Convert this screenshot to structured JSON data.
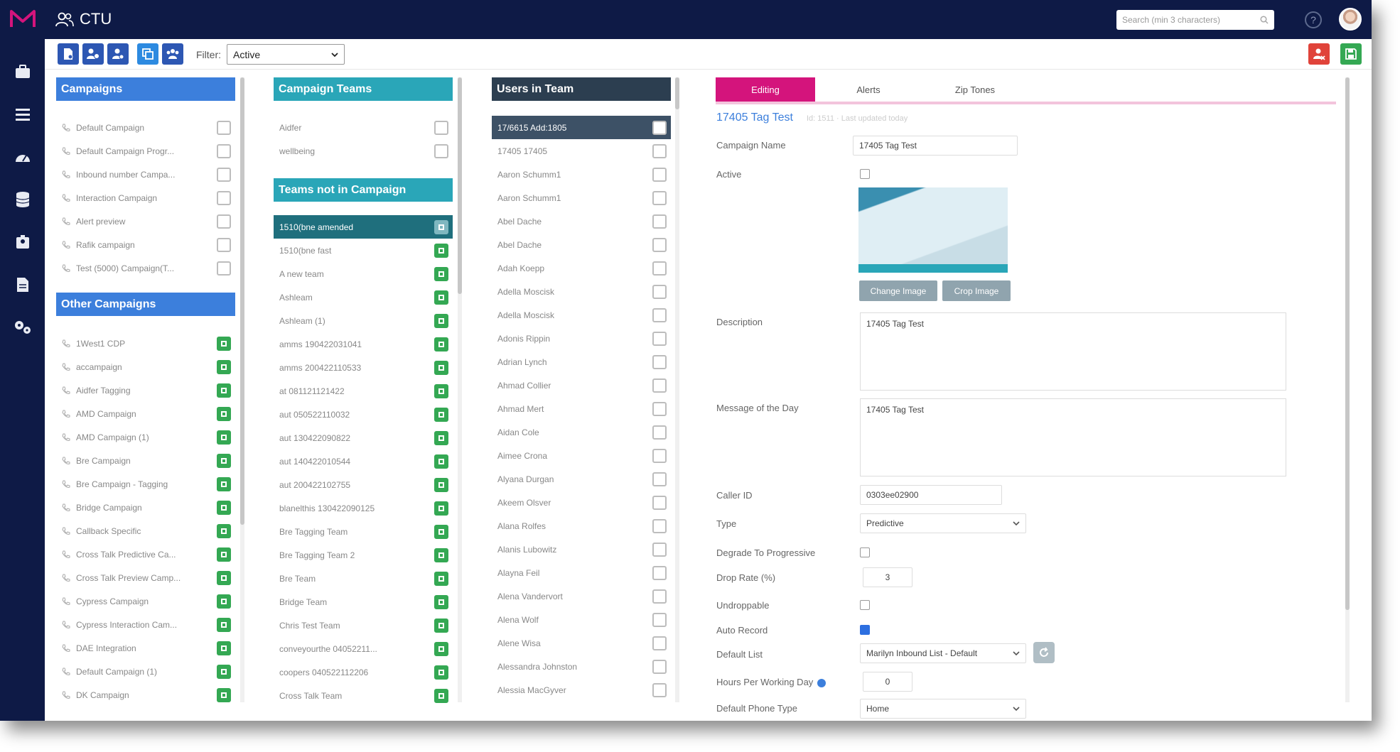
{
  "app": {
    "title": "CTU",
    "search_placeholder": "Search (min 3 characters)"
  },
  "toolbar": {
    "filter_label": "Filter:",
    "filter_value": "Active"
  },
  "campaigns": {
    "header": "Campaigns",
    "items": [
      "Default Campaign",
      "Default Campaign Progr...",
      "Inbound number Campa...",
      "Interaction Campaign",
      "Alert preview",
      "Rafik campaign",
      "Test (5000) Campaign(T..."
    ]
  },
  "other_campaigns": {
    "header": "Other Campaigns",
    "items": [
      "1West1 CDP",
      "accampaign",
      "Aidfer Tagging",
      "AMD Campaign",
      "AMD Campaign (1)",
      "Bre Campaign",
      "Bre Campaign - Tagging",
      "Bridge Campaign",
      "Callback Specific",
      "Cross Talk Predictive Ca...",
      "Cross Talk Preview Camp...",
      "Cypress Campaign",
      "Cypress Interaction Cam...",
      "DAE Integration",
      "Default Campaign (1)",
      "DK Campaign"
    ]
  },
  "campaign_teams": {
    "header": "Campaign Teams",
    "items": [
      "Aidfer",
      "wellbeing"
    ]
  },
  "teams_not_in_campaign": {
    "header": "Teams not in Campaign",
    "selected": "1510(bne amended",
    "items": [
      "1510(bne fast",
      "A new team",
      "Ashleam",
      "Ashleam (1)",
      "amms 190422031041",
      "amms 200422110533",
      "at 081121121422",
      "aut 050522110032",
      "aut 130422090822",
      "aut 140422010544",
      "aut 200422102755",
      "blanelthis 130422090125",
      "Bre Tagging Team",
      "Bre Tagging Team 2",
      "Bre Team",
      "Bridge Team",
      "Chris Test Team",
      "conveyourthe 04052211...",
      "coopers 040522112206",
      "Cross Talk Team"
    ]
  },
  "users_in_team": {
    "header": "Users in Team",
    "selected": "17/6615 Add:1805",
    "items": [
      "17405 17405",
      "Aaron Schumm1",
      "Aaron Schumm1",
      "Abel Dache",
      "Abel Dache",
      "Adah Koepp",
      "Adella Moscisk",
      "Adella Moscisk",
      "Adonis Rippin",
      "Adrian Lynch",
      "Ahmad Collier",
      "Ahmad Mert",
      "Aidan Cole",
      "Aimee Crona",
      "Alyana Durgan",
      "Akeem Olsver",
      "Alana Rolfes",
      "Alanis Lubowitz",
      "Alayna Feil",
      "Alena Vandervort",
      "Alena Wolf",
      "Alene Wisa",
      "Alessandra Johnston",
      "Alessia MacGyver"
    ]
  },
  "tabs": [
    "Editing",
    "Alerts",
    "Zip Tones"
  ],
  "form": {
    "title": "17405 Tag Test",
    "subtitle": "Id: 1511 · Last updated today",
    "campaign_name_label": "Campaign Name",
    "campaign_name_value": "17405 Tag Test",
    "active_label": "Active",
    "change_image_label": "Change Image",
    "crop_image_label": "Crop Image",
    "description_label": "Description",
    "description_value": "17405 Tag Test",
    "motd_label": "Message of the Day",
    "motd_value": "17405 Tag Test",
    "caller_id_label": "Caller ID",
    "caller_id_value": "0303ee02900",
    "type_label": "Type",
    "type_value": "Predictive",
    "degrade_label": "Degrade To Progressive",
    "drop_rate_label": "Drop Rate (%)",
    "drop_rate_value": "3",
    "undroppable_label": "Undroppable",
    "auto_record_label": "Auto Record",
    "default_list_label": "Default List",
    "default_list_value": "Marilyn Inbound List - Default",
    "hours_label": "Hours Per Working Day",
    "hours_value": "0",
    "phone_type_label": "Default Phone Type",
    "phone_type_value": "Home"
  },
  "colors": {
    "nav": "#0e1a46",
    "campaign_header": "#3c7fdc",
    "team_header": "#2aa6b8",
    "user_header": "#2c3e50",
    "tab_active": "#d4147c",
    "check_green": "#34a853"
  }
}
